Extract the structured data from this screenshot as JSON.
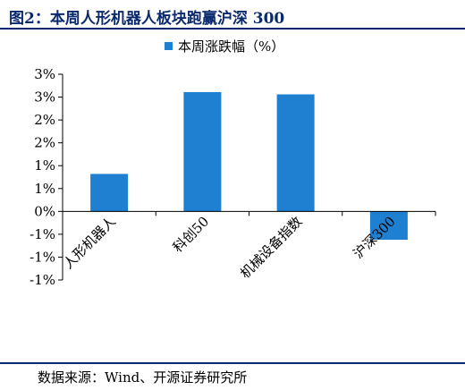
{
  "figure": {
    "title": "图2：本周人形机器人板块跑赢沪深 300",
    "source": "数据来源：Wind、开源证券研究所"
  },
  "colors": {
    "bar": "#1f7fd1",
    "title": "#0b2a6e",
    "axis": "#000000"
  },
  "chart_data": {
    "type": "bar",
    "categories": [
      "人形机器人",
      "科创50",
      "机械设备指数",
      "沪深300"
    ],
    "series": [
      {
        "name": "本周涨跌幅（%）",
        "values": [
          0.82,
          2.61,
          2.56,
          -0.62
        ]
      }
    ],
    "ylim": [
      -1.5,
      3.0
    ],
    "yticks": [
      -1.5,
      -1.0,
      -0.5,
      0.0,
      0.5,
      1.0,
      1.5,
      2.0,
      2.5,
      3.0
    ],
    "yticklabels": [
      "-1%",
      "-1%",
      "-1%",
      "0%",
      "1%",
      "1%",
      "2%",
      "2%",
      "3%",
      "3%"
    ],
    "legend": "top-center",
    "grid": false
  }
}
